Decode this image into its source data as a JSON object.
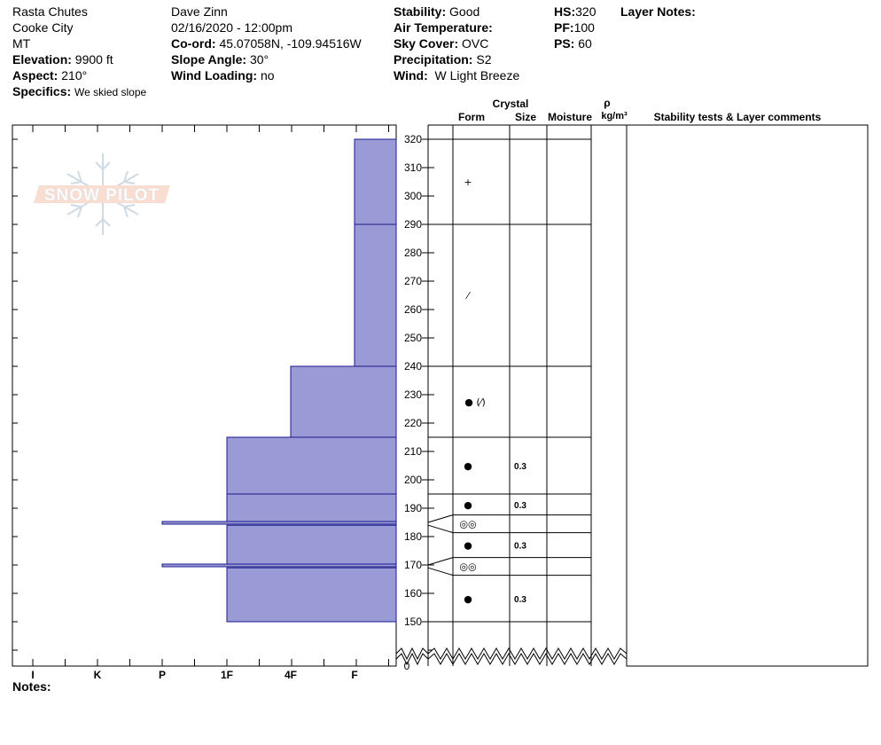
{
  "header": {
    "location": "Rasta Chutes",
    "region": "Cooke City",
    "state": "MT",
    "elevation_label": "Elevation:",
    "elevation": "9900 ft",
    "aspect_label": "Aspect:",
    "aspect": "210°",
    "specifics_label": "Specifics:",
    "specifics": "We skied slope",
    "observer": "Dave Zinn",
    "datetime": "02/16/2020 - 12:00pm",
    "coord_label": "Co-ord:",
    "coord": "45.07058N, -109.94516W",
    "slope_label": "Slope Angle:",
    "slope": "30°",
    "wind_loading_label": "Wind Loading:",
    "wind_loading": "no",
    "stability_label": "Stability:",
    "stability": "Good",
    "air_temp_label": "Air Temperature:",
    "sky_label": "Sky Cover:",
    "sky": "OVC",
    "precip_label": "Precipitation:",
    "precip": "S2",
    "wind_label": "Wind:",
    "wind": "W Light Breeze",
    "hs_label": "HS:",
    "hs": "320",
    "pf_label": "PF:",
    "pf": "100",
    "ps_label": "PS:",
    "ps": "60",
    "layer_notes_label": "Layer Notes:"
  },
  "notes_label": "Notes:",
  "logo_text": "SNOW PILOT",
  "colors": {
    "hardness_fill": "#9a9ad6",
    "hardness_stroke": "#1a1a8c"
  },
  "chart_data": {
    "type": "bar",
    "orientation": "horizontal-profile",
    "hardness_axis": [
      "I",
      "K",
      "P",
      "1F",
      "4F",
      "F"
    ],
    "y_ticks": [
      150,
      160,
      170,
      180,
      190,
      200,
      210,
      220,
      230,
      240,
      250,
      260,
      270,
      280,
      290,
      300,
      310,
      320
    ],
    "y_zero_label": "0",
    "ylim": [
      0,
      320
    ],
    "hardness_layers": [
      {
        "top": 320,
        "bottom": 290,
        "hardness": "F"
      },
      {
        "top": 290,
        "bottom": 240,
        "hardness": "F"
      },
      {
        "top": 240,
        "bottom": 215,
        "hardness": "4F"
      },
      {
        "top": 215,
        "bottom": 195,
        "hardness": "1F"
      },
      {
        "top": 195,
        "bottom": 185,
        "hardness": "1F"
      },
      {
        "top": 185,
        "bottom": 184,
        "hardness": "P"
      },
      {
        "top": 184,
        "bottom": 170,
        "hardness": "1F"
      },
      {
        "top": 170,
        "bottom": 169,
        "hardness": "P"
      },
      {
        "top": 169,
        "bottom": 150,
        "hardness": "1F"
      }
    ],
    "table_headers": {
      "crystal": "Crystal",
      "form": "Form",
      "size": "Size",
      "moisture": "Moisture",
      "rho": "ρ",
      "density_unit": "kg/m³",
      "stability": "Stability tests & Layer comments"
    },
    "table_rows": [
      {
        "top": 320,
        "bottom": 290,
        "form": "+",
        "size": ""
      },
      {
        "top": 290,
        "bottom": 240,
        "form": "⁄",
        "size": ""
      },
      {
        "top": 240,
        "bottom": 215,
        "form": "● (⁄)",
        "size": ""
      },
      {
        "top": 215,
        "bottom": 195,
        "form": "●",
        "size": "0.3"
      },
      {
        "top": 195,
        "bottom": 185,
        "form": "●",
        "size": "0.3"
      },
      {
        "top": 185,
        "bottom": 184,
        "form": "◎◎",
        "size": ""
      },
      {
        "top": 184,
        "bottom": 170,
        "form": "●",
        "size": "0.3"
      },
      {
        "top": 170,
        "bottom": 169,
        "form": "◎◎",
        "size": ""
      },
      {
        "top": 169,
        "bottom": 150,
        "form": "●",
        "size": "0.3"
      }
    ]
  }
}
